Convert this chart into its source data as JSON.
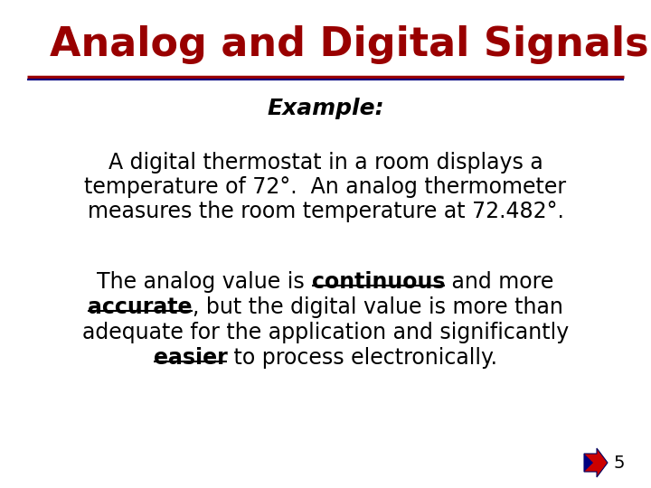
{
  "title": "Analog and Digital Signals",
  "title_color": "#990000",
  "title_fontsize": 32,
  "line1_color": "#990000",
  "line2_color": "#000080",
  "subtitle": "Example:",
  "subtitle_fontsize": 18,
  "para1_line1": "A digital thermostat in a room displays a",
  "para1_line2": "temperature of 72°.  An analog thermometer",
  "para1_line3": "measures the room temperature at 72.482°.",
  "para1_fontsize": 17,
  "para2_fontsize": 17,
  "page_number": "5",
  "bg_color": "#ffffff",
  "text_color": "#000000"
}
